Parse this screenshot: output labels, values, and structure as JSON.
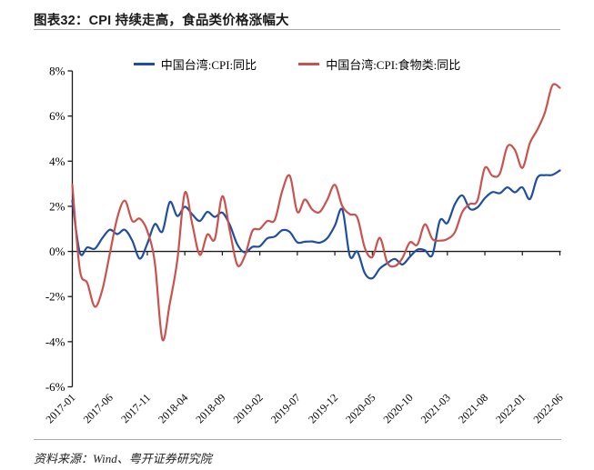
{
  "header": {
    "title": "图表32：CPI 持续走高，食品类价格涨幅大"
  },
  "footer": {
    "source": "资料来源：Wind、粤开证券研究院"
  },
  "colors": {
    "series1": "#1F4E9E",
    "series2": "#C9524E",
    "axis": "#1a1a1a",
    "rule": "#a9a9a9"
  },
  "chart_data": {
    "type": "line",
    "title": "图表32：CPI 持续走高，食品类价格涨幅大",
    "ylim": [
      -6,
      8
    ],
    "yticks": [
      8,
      6,
      4,
      2,
      0,
      -2,
      -4,
      -6
    ],
    "ytick_suffix": "%",
    "grid": false,
    "legend_position": "top",
    "xtick_labels": [
      "2017-01",
      "2017-06",
      "2017-11",
      "2018-04",
      "2018-09",
      "2019-02",
      "2019-07",
      "2019-12",
      "2020-05",
      "2020-10",
      "2021-03",
      "2021-08",
      "2022-01",
      "2022-06"
    ],
    "x": [
      "2017-01",
      "2017-02",
      "2017-03",
      "2017-04",
      "2017-05",
      "2017-06",
      "2017-07",
      "2017-08",
      "2017-09",
      "2017-10",
      "2017-11",
      "2017-12",
      "2018-01",
      "2018-02",
      "2018-03",
      "2018-04",
      "2018-05",
      "2018-06",
      "2018-07",
      "2018-08",
      "2018-09",
      "2018-10",
      "2018-11",
      "2018-12",
      "2019-01",
      "2019-02",
      "2019-03",
      "2019-04",
      "2019-05",
      "2019-06",
      "2019-07",
      "2019-08",
      "2019-09",
      "2019-10",
      "2019-11",
      "2019-12",
      "2020-01",
      "2020-02",
      "2020-03",
      "2020-04",
      "2020-05",
      "2020-06",
      "2020-07",
      "2020-08",
      "2020-09",
      "2020-10",
      "2020-11",
      "2020-12",
      "2021-01",
      "2021-02",
      "2021-03",
      "2021-04",
      "2021-05",
      "2021-06",
      "2021-07",
      "2021-08",
      "2021-09",
      "2021-10",
      "2021-11",
      "2021-12",
      "2022-01",
      "2022-02",
      "2022-03",
      "2022-04",
      "2022-05",
      "2022-06"
    ],
    "series": [
      {
        "name": "中国台湾:CPI:同比",
        "color_key": "series1",
        "values": [
          2.25,
          -0.05,
          0.18,
          0.12,
          0.59,
          0.96,
          0.77,
          0.96,
          0.47,
          -0.32,
          0.35,
          1.21,
          0.88,
          2.19,
          1.57,
          1.98,
          1.64,
          1.35,
          1.75,
          1.53,
          1.72,
          1.17,
          0.31,
          -0.05,
          0.2,
          0.23,
          0.58,
          0.66,
          0.94,
          0.86,
          0.4,
          0.43,
          0.44,
          0.39,
          0.59,
          1.14,
          1.85,
          -0.21,
          -0.01,
          -0.97,
          -1.19,
          -0.76,
          -0.52,
          -0.33,
          -0.58,
          -0.24,
          0.08,
          0.05,
          -0.16,
          1.37,
          1.26,
          2.09,
          2.48,
          1.89,
          1.95,
          2.36,
          2.63,
          2.58,
          2.84,
          2.62,
          2.84,
          2.32,
          3.27,
          3.38,
          3.39,
          3.59
        ]
      },
      {
        "name": "中国台湾:CPI:食物类:同比",
        "color_key": "series2",
        "values": [
          2.95,
          -0.8,
          -1.4,
          -2.45,
          -1.7,
          -0.1,
          1.5,
          2.25,
          1.35,
          1.45,
          0.9,
          -0.5,
          -3.9,
          -2.3,
          -0.4,
          2.6,
          1.2,
          -0.15,
          0.75,
          0.55,
          2.45,
          0.9,
          -0.6,
          -0.2,
          0.9,
          1.0,
          1.35,
          1.4,
          2.7,
          3.35,
          1.75,
          2.3,
          1.85,
          1.75,
          2.3,
          2.95,
          2.0,
          1.65,
          1.5,
          0.15,
          -0.25,
          0.6,
          -0.5,
          -0.65,
          -0.3,
          0.4,
          0.3,
          1.2,
          0.55,
          0.48,
          0.55,
          0.85,
          1.75,
          2.1,
          2.25,
          3.7,
          3.35,
          3.45,
          4.65,
          4.5,
          3.7,
          4.8,
          5.4,
          6.15,
          7.35,
          7.25
        ]
      }
    ]
  }
}
